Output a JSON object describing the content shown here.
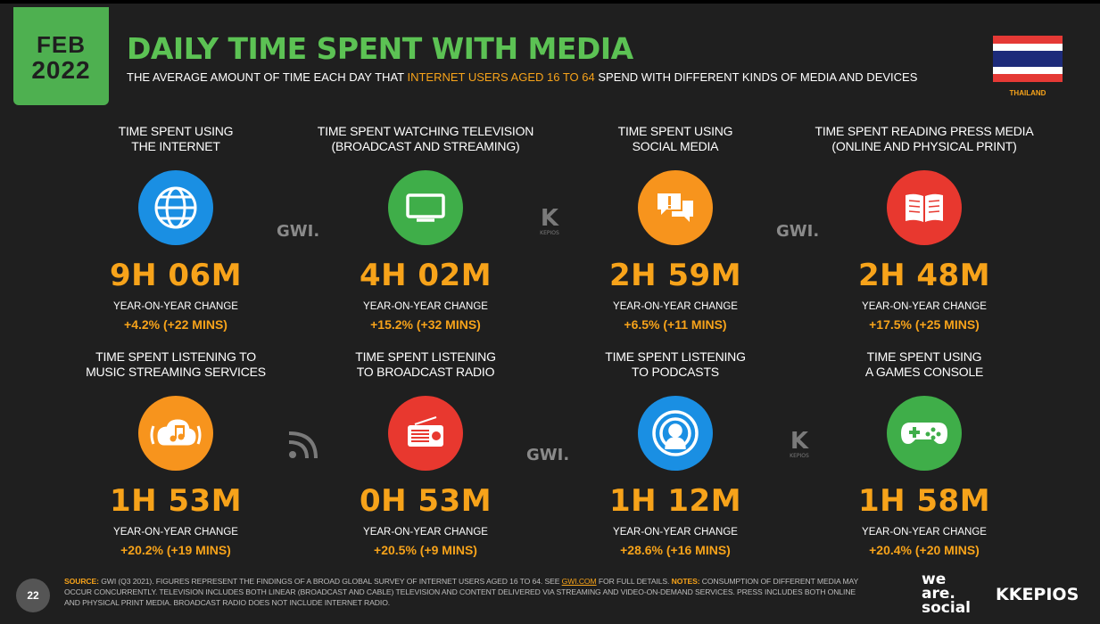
{
  "header": {
    "month": "FEB",
    "year": "2022",
    "title": "DAILY TIME SPENT WITH MEDIA",
    "subtitle_pre": "THE AVERAGE AMOUNT OF TIME EACH DAY THAT ",
    "subtitle_highlight": "INTERNET USERS AGED 16 TO 64",
    "subtitle_post": " SPEND WITH DIFFERENT KINDS OF MEDIA AND DEVICES",
    "country": "THAILAND"
  },
  "colors": {
    "accent_orange": "#f7a31a",
    "title_green": "#5cc254",
    "badge_green": "#4eb050",
    "background": "#1f1f1f"
  },
  "yoy_label": "YEAR-ON-YEAR CHANGE",
  "metrics": [
    {
      "label_line1": "TIME SPENT USING",
      "label_line2": "THE INTERNET",
      "icon": "globe-icon",
      "icon_color": "#1a8fe3",
      "value": "9H 06M",
      "change": "+4.2% (+22 MINS)"
    },
    {
      "label_line1": "TIME SPENT WATCHING TELEVISION",
      "label_line2": "(BROADCAST AND STREAMING)",
      "icon": "tv-icon",
      "icon_color": "#3fae49",
      "value": "4H 02M",
      "change": "+15.2% (+32 MINS)"
    },
    {
      "label_line1": "TIME SPENT USING",
      "label_line2": "SOCIAL MEDIA",
      "icon": "chat-bubbles-icon",
      "icon_color": "#f7941d",
      "value": "2H 59M",
      "change": "+6.5% (+11 MINS)"
    },
    {
      "label_line1": "TIME SPENT READING PRESS MEDIA",
      "label_line2": "(ONLINE AND PHYSICAL PRINT)",
      "icon": "book-icon",
      "icon_color": "#e8382f",
      "value": "2H 48M",
      "change": "+17.5% (+25 MINS)"
    },
    {
      "label_line1": "TIME SPENT LISTENING TO",
      "label_line2": "MUSIC STREAMING SERVICES",
      "icon": "music-cloud-icon",
      "icon_color": "#f7941d",
      "value": "1H 53M",
      "change": "+20.2% (+19 MINS)"
    },
    {
      "label_line1": "TIME SPENT LISTENING",
      "label_line2": "TO BROADCAST RADIO",
      "icon": "radio-icon",
      "icon_color": "#e8382f",
      "value": "0H 53M",
      "change": "+20.5% (+9 MINS)"
    },
    {
      "label_line1": "TIME SPENT LISTENING",
      "label_line2": "TO PODCASTS",
      "icon": "podcast-icon",
      "icon_color": "#1a8fe3",
      "value": "1H 12M",
      "change": "+28.6% (+16 MINS)"
    },
    {
      "label_line1": "TIME SPENT USING",
      "label_line2": "A GAMES CONSOLE",
      "icon": "gamepad-icon",
      "icon_color": "#3fae49",
      "value": "1H 58M",
      "change": "+20.4% (+20 MINS)"
    }
  ],
  "watermarks": {
    "gwi": "GWI.",
    "kepios_small": "KEPIOS"
  },
  "footer": {
    "page_number": "22",
    "source_label": "SOURCE:",
    "source_text": " GWI (Q3 2021). FIGURES REPRESENT THE FINDINGS OF A BROAD GLOBAL SURVEY OF INTERNET USERS AGED 16 TO 64. SEE ",
    "source_link": "GWI.COM",
    "source_after": " FOR FULL DETAILS. ",
    "notes_label": "NOTES:",
    "notes_text": " CONSUMPTION OF DIFFERENT MEDIA MAY OCCUR CONCURRENTLY. TELEVISION INCLUDES BOTH LINEAR (BROADCAST AND CABLE) TELEVISION AND CONTENT DELIVERED VIA STREAMING AND VIDEO-ON-DEMAND SERVICES. PRESS INCLUDES BOTH ONLINE AND PHYSICAL PRINT MEDIA. BROADCAST RADIO DOES NOT INCLUDE INTERNET RADIO.",
    "brand_we": "we",
    "brand_are": "are.",
    "brand_social": "social",
    "brand_kepios": "KEPIOS"
  }
}
